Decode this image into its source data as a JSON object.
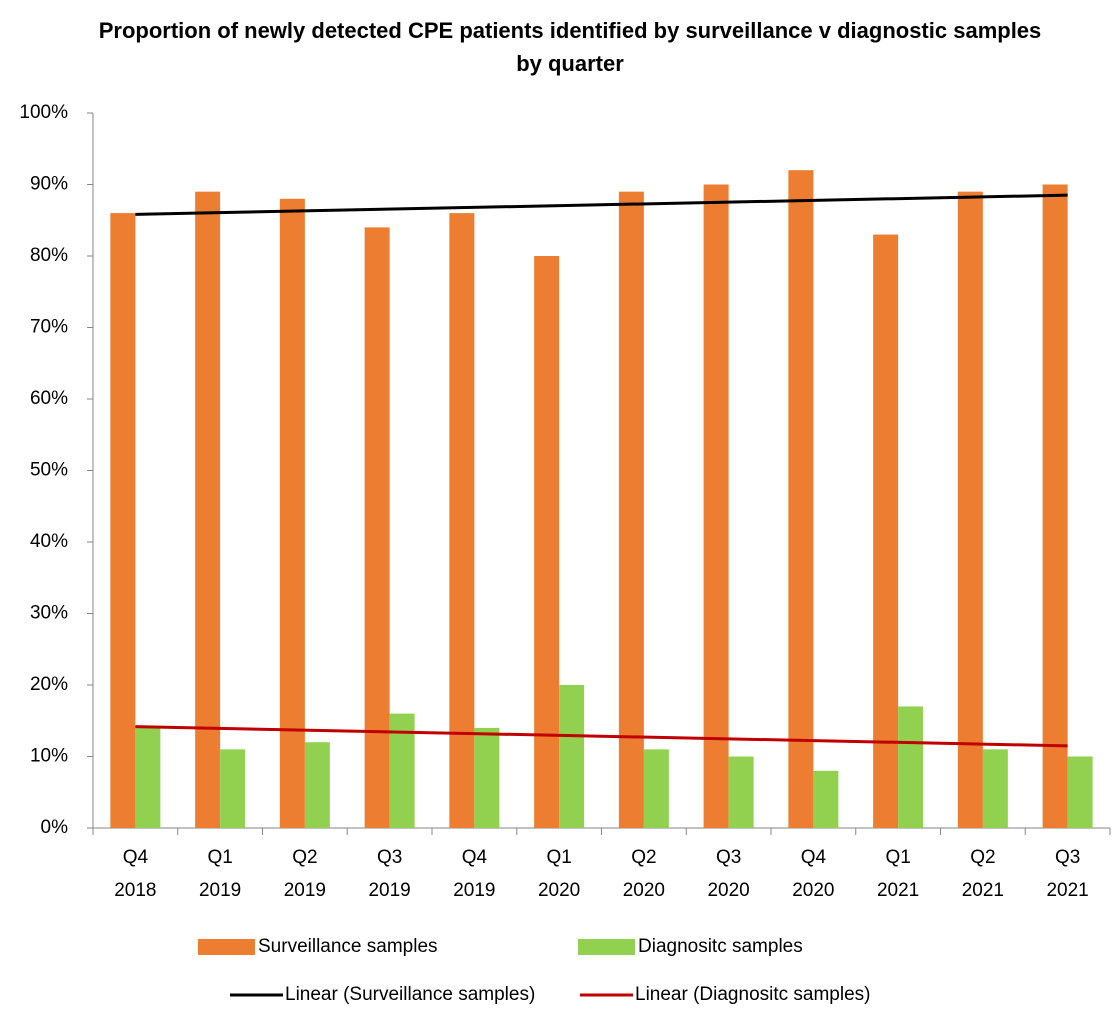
{
  "chart_data": {
    "type": "bar",
    "title": "Proportion of newly detected CPE patients identified by surveillance v diagnostic samples by quarter",
    "categories": [
      "Q4 2018",
      "Q1 2019",
      "Q2 2019",
      "Q3 2019",
      "Q4 2019",
      "Q1 2020",
      "Q2 2020",
      "Q3 2020",
      "Q4 2020",
      "Q1 2021",
      "Q2 2021",
      "Q3 2021"
    ],
    "series": [
      {
        "name": "Surveillance samples",
        "color": "#ed7d31",
        "values": [
          86,
          89,
          88,
          84,
          86,
          80,
          89,
          90,
          92,
          83,
          89,
          90
        ],
        "trendline": {
          "name": "Linear (Surveillance samples)",
          "color": "#000000"
        }
      },
      {
        "name": "Diagnositc samples",
        "color": "#92d050",
        "values": [
          14,
          11,
          12,
          16,
          14,
          20,
          11,
          10,
          8,
          17,
          11,
          10
        ],
        "trendline": {
          "name": "Linear (Diagnositc samples)",
          "color": "#c00000"
        }
      }
    ],
    "ylim": [
      0,
      100
    ],
    "yticks": [
      {
        "value": 0,
        "label": "0%"
      },
      {
        "value": 10,
        "label": "10%"
      },
      {
        "value": 20,
        "label": "20%"
      },
      {
        "value": 30,
        "label": "30%"
      },
      {
        "value": 40,
        "label": "40%"
      },
      {
        "value": 50,
        "label": "50%"
      },
      {
        "value": 60,
        "label": "60%"
      },
      {
        "value": 70,
        "label": "70%"
      },
      {
        "value": 80,
        "label": "80%"
      },
      {
        "value": 90,
        "label": "90%"
      },
      {
        "value": 100,
        "label": "100%"
      }
    ],
    "grid": false,
    "legend": "bottom"
  }
}
